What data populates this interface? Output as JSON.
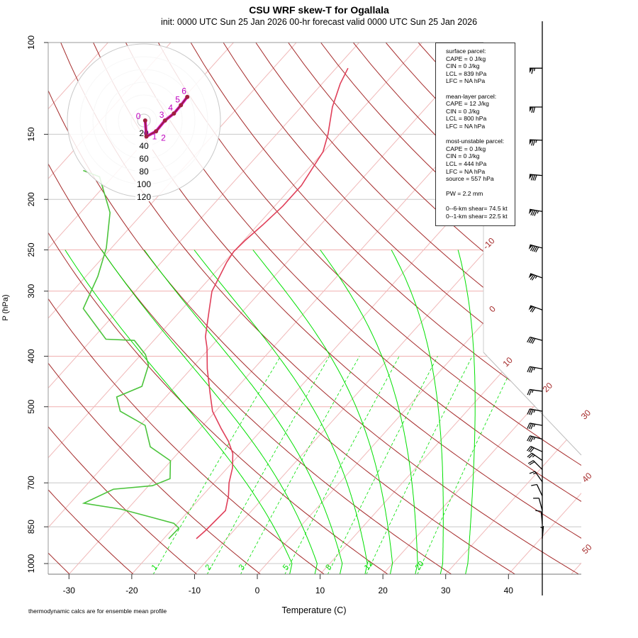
{
  "title": "CSU WRF skew-T for Ogallala",
  "subtitle": "init: 0000 UTC Sun 25 Jan 2026    00-hr forecast valid 0000 UTC Sun 25 Jan 2026",
  "footnote": "thermodynamic calcs are for ensemble mean profile",
  "info_box": {
    "surface": [
      "surface parcel:",
      "CAPE = 0 J/kg",
      "CIN = 0 J/kg",
      "LCL = 839 hPa",
      "LFC = NA hPa"
    ],
    "mean_layer": [
      "mean-layer parcel:",
      "CAPE = 12 J/kg",
      "CIN = 0 J/kg",
      "LCL = 800 hPa",
      "LFC = NA hPa"
    ],
    "most_unstable": [
      "most-unstable parcel:",
      "CAPE = 0 J/kg",
      "CIN = 0 J/kg",
      "LCL = 444 hPa",
      "LFC = NA hPa",
      "source = 557 hPa"
    ],
    "pw": "PW =  2.2 mm",
    "shear": [
      "0--6-km shear= 74.5 kt",
      "0--1-km shear= 22.5 kt"
    ]
  },
  "chart_data": {
    "type": "line",
    "subtype": "skew-T log-P",
    "title": "CSU WRF skew-T for Ogallala",
    "xlabel": "Temperature (C)",
    "ylabel": "P (hPa)",
    "x_ticks": [
      -30,
      -20,
      -10,
      0,
      10,
      20,
      30,
      40
    ],
    "y_ticks": [
      100,
      150,
      200,
      250,
      300,
      400,
      500,
      700,
      850,
      1000
    ],
    "y_scale": "log",
    "ylim": [
      1050,
      100
    ],
    "isotherm_labels": [
      "-10",
      "0",
      "10",
      "20",
      "30",
      "40",
      "50"
    ],
    "mixing_ratio_labels": [
      "1",
      "2",
      "3",
      "5",
      "8",
      "12",
      "20"
    ],
    "colors": {
      "temperature": "#e0405a",
      "dewpoint": "#4cc43c",
      "dry_adiabat": "#a52a2a",
      "moist_adiabat": "#00e000",
      "mixing_ratio": "#00e000",
      "isotherm": "#f0b8b8"
    },
    "series": [
      {
        "name": "temperature",
        "p": [
          896,
          863,
          791,
          742,
          700,
          655,
          615,
          582,
          551,
          510,
          472,
          423,
          385,
          367,
          329,
          300,
          281,
          264,
          252,
          240,
          224,
          206,
          188,
          162,
          150,
          133,
          120,
          112
        ],
        "T": [
          -14.8,
          -14.5,
          -14.2,
          -15.8,
          -17.6,
          -19.2,
          -21.2,
          -23.7,
          -26.6,
          -30.5,
          -33.4,
          -37.4,
          -40.5,
          -42.3,
          -45.3,
          -47.8,
          -48.7,
          -49.6,
          -50.0,
          -49.8,
          -49.2,
          -48.7,
          -48.7,
          -50.1,
          -51.8,
          -55.0,
          -57.1,
          -58.1
        ]
      },
      {
        "name": "dewpoint",
        "p": [
          896,
          855,
          837,
          816,
          786,
          766,
          720,
          709,
          687,
          635,
          597,
          543,
          510,
          479,
          457,
          416,
          397,
          373,
          371,
          324,
          281,
          248,
          212,
          181,
          176
        ],
        "T": [
          -19.2,
          -19.1,
          -20.6,
          -24.8,
          -31.1,
          -37.8,
          -35.1,
          -29.4,
          -27.6,
          -30.1,
          -35.3,
          -39.2,
          -45.2,
          -47.8,
          -45.3,
          -47.3,
          -49.3,
          -53.1,
          -57.8,
          -65.8,
          -68.1,
          -70.8,
          -75.3,
          -82.1,
          -85.6
        ]
      }
    ],
    "winds": [
      {
        "p": 112,
        "dir": 270,
        "kt": 65
      },
      {
        "p": 133,
        "dir": 270,
        "kt": 70
      },
      {
        "p": 154,
        "dir": 272,
        "kt": 75
      },
      {
        "p": 180,
        "dir": 275,
        "kt": 80
      },
      {
        "p": 211,
        "dir": 280,
        "kt": 85
      },
      {
        "p": 248,
        "dir": 285,
        "kt": 90
      },
      {
        "p": 283,
        "dir": 290,
        "kt": 75
      },
      {
        "p": 326,
        "dir": 290,
        "kt": 70
      },
      {
        "p": 373,
        "dir": 285,
        "kt": 40
      },
      {
        "p": 423,
        "dir": 280,
        "kt": 35
      },
      {
        "p": 467,
        "dir": 278,
        "kt": 25
      },
      {
        "p": 510,
        "dir": 280,
        "kt": 35
      },
      {
        "p": 543,
        "dir": 280,
        "kt": 35
      },
      {
        "p": 577,
        "dir": 285,
        "kt": 35
      },
      {
        "p": 610,
        "dir": 295,
        "kt": 30
      },
      {
        "p": 634,
        "dir": 305,
        "kt": 25
      },
      {
        "p": 660,
        "dir": 315,
        "kt": 20
      },
      {
        "p": 697,
        "dir": 325,
        "kt": 15
      },
      {
        "p": 742,
        "dir": 335,
        "kt": 10
      },
      {
        "p": 791,
        "dir": 345,
        "kt": 10
      },
      {
        "p": 840,
        "dir": 355,
        "kt": 10
      },
      {
        "p": 896,
        "dir": 5,
        "kt": 5
      }
    ],
    "hodograph": {
      "ring_labels": [
        "20",
        "40",
        "60",
        "80",
        "100",
        "120"
      ],
      "points": [
        {
          "km": "0",
          "u": 2,
          "v": 0
        },
        {
          "km": "1",
          "u": 4,
          "v": -25
        },
        {
          "km": "2",
          "u": 19,
          "v": -17
        },
        {
          "km": "3",
          "u": 33,
          "v": 0
        },
        {
          "km": "4",
          "u": 47,
          "v": 11
        },
        {
          "km": "5",
          "u": 58,
          "v": 24
        },
        {
          "km": "6",
          "u": 68,
          "v": 37
        }
      ]
    }
  }
}
